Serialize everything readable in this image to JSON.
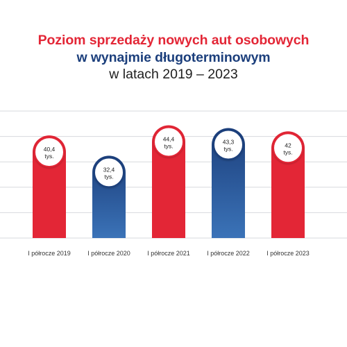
{
  "title": {
    "line1": "Poziom sprzedaży nowych aut osobowych",
    "line2": "w wynajmie długoterminowym",
    "line3": "w latach 2019 – 2023"
  },
  "colors": {
    "red": "#e32636",
    "blue": "#1c3f7c",
    "blue_light": "#3b73b8",
    "grid": "#d7d9dd"
  },
  "chart_data": {
    "type": "bar",
    "categories": [
      "I półrocze 2019",
      "I półrocze 2020",
      "I półrocze 2021",
      "I półrocze 2022",
      "I półrocze 2023"
    ],
    "values": [
      40.4,
      32.4,
      44.4,
      43.3,
      42
    ],
    "value_labels": [
      "40,4",
      "32,4",
      "44,4",
      "43,3",
      "42"
    ],
    "unit_label": "tys.",
    "bar_colors": [
      "red",
      "blue",
      "red",
      "blue",
      "red"
    ],
    "ylim": [
      0,
      50
    ],
    "grid": true,
    "title": "Poziom sprzedaży nowych aut osobowych w wynajmie długoterminowym w latach 2019 – 2023",
    "xlabel": "",
    "ylabel": ""
  }
}
